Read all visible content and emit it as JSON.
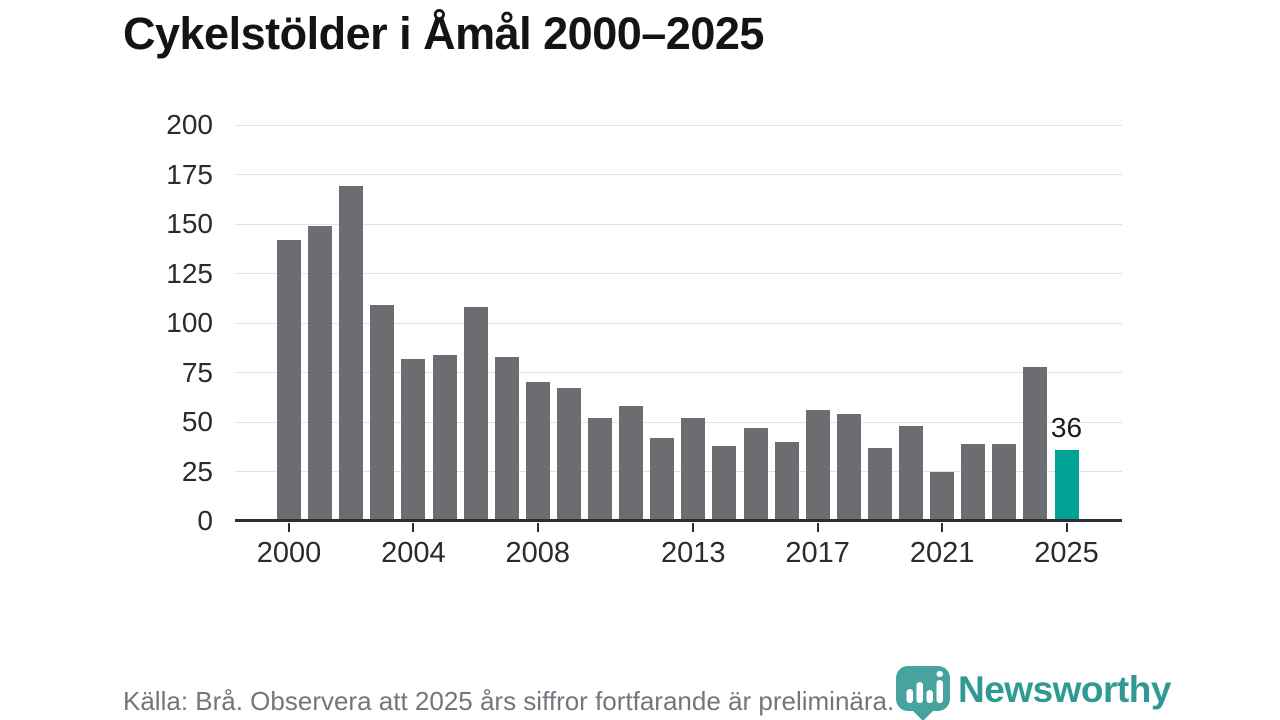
{
  "title": "Cykelstölder i Åmål 2000–2025",
  "source_note": "Källa: Brå. Observera att 2025 års siffror fortfarande är preliminära.",
  "branding": {
    "logo_text": "Newsworthy",
    "logo_icon": "newsworthy-bar-chart-pin-icon",
    "brand_color": "#2f9a94",
    "badge_color": "#3d9e98"
  },
  "colors": {
    "bar": "#6c6c71",
    "highlight": "#00a296",
    "grid": "#e3e3e3",
    "axis": "#2e2e2e",
    "title_text": "#141414",
    "tick_text": "#2b2b2b",
    "muted_text": "#75757d"
  },
  "chart_data": {
    "type": "bar",
    "title": "Cykelstölder i Åmål 2000–2025",
    "categories": [
      2000,
      2001,
      2002,
      2003,
      2004,
      2005,
      2006,
      2007,
      2008,
      2009,
      2010,
      2011,
      2012,
      2013,
      2014,
      2015,
      2016,
      2017,
      2018,
      2019,
      2020,
      2021,
      2022,
      2023,
      2024,
      2025
    ],
    "values": [
      142,
      149,
      169,
      109,
      82,
      84,
      108,
      83,
      70,
      67,
      52,
      58,
      42,
      52,
      38,
      47,
      40,
      56,
      54,
      37,
      48,
      25,
      39,
      39,
      78,
      36
    ],
    "highlight_index": 25,
    "highlight_label": "36",
    "x_tick_years": [
      2000,
      2004,
      2008,
      2013,
      2017,
      2021,
      2025
    ],
    "x_tick_labels": [
      "2000",
      "2004",
      "2008",
      "2013",
      "2017",
      "2021",
      "2025"
    ],
    "y_ticks": [
      0,
      25,
      50,
      75,
      100,
      125,
      150,
      175,
      200
    ],
    "ylim": [
      0,
      200
    ],
    "xlabel": "",
    "ylabel": "",
    "grid": true,
    "legend": "none"
  }
}
